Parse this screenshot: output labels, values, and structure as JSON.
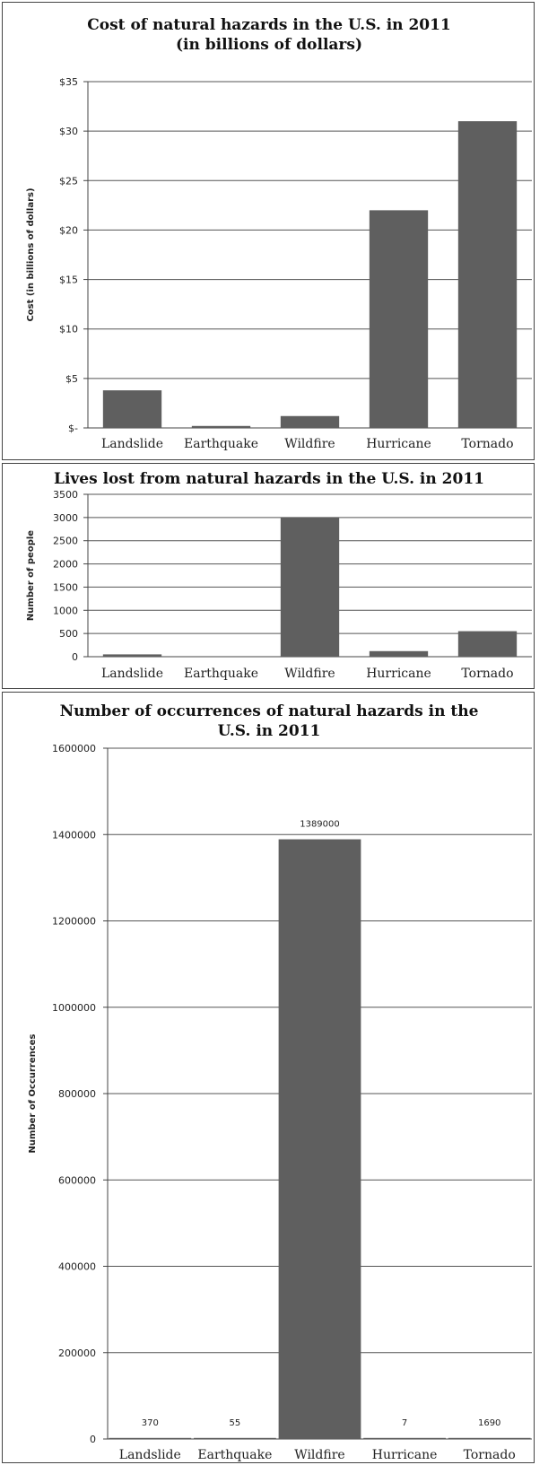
{
  "chart_data": [
    {
      "type": "bar",
      "title_lines": [
        "Cost of natural  hazards in the U.S. in 2011",
        "(in billions of dollars)"
      ],
      "ylabel": "Cost (in billions of dollars)",
      "categories": [
        "Landslide",
        "Earthquake",
        "Wildfire",
        "Hurricane",
        "Tornado"
      ],
      "values": [
        3.8,
        0.2,
        1.2,
        22,
        31
      ],
      "ylim": [
        0,
        35
      ],
      "yticks": [
        0,
        5,
        10,
        15,
        20,
        25,
        30,
        35
      ],
      "ytick_labels": [
        "$-",
        "$5",
        "$10",
        "$15",
        "$20",
        "$25",
        "$30",
        "$35"
      ],
      "grid": true,
      "data_labels": []
    },
    {
      "type": "bar",
      "title_lines": [
        "Lives lost from natural  hazards in the U.S. in 2011"
      ],
      "ylabel": "Number of people",
      "categories": [
        "Landslide",
        "Earthquake",
        "Wildfire",
        "Hurricane",
        "Tornado"
      ],
      "values": [
        50,
        0,
        3000,
        120,
        550
      ],
      "ylim": [
        0,
        3500
      ],
      "yticks": [
        0,
        500,
        1000,
        1500,
        2000,
        2500,
        3000,
        3500
      ],
      "ytick_labels": [
        "0",
        "500",
        "1000",
        "1500",
        "2000",
        "2500",
        "3000",
        "3500"
      ],
      "grid": true,
      "data_labels": []
    },
    {
      "type": "bar",
      "title_lines": [
        "Number of occurrences of natural  hazards in the",
        "U.S. in 2011"
      ],
      "ylabel": "Number of Occurrences",
      "categories": [
        "Landslide",
        "Earthquake",
        "Wildfire",
        "Hurricane",
        "Tornado"
      ],
      "values": [
        370,
        55,
        1389000,
        7,
        1690
      ],
      "ylim": [
        0,
        1600000
      ],
      "yticks": [
        0,
        200000,
        400000,
        600000,
        800000,
        1000000,
        1200000,
        1400000,
        1600000
      ],
      "ytick_labels": [
        "0",
        "200000",
        "400000",
        "600000",
        "800000",
        "1000000",
        "1200000",
        "1400000",
        "1600000"
      ],
      "grid": true,
      "data_labels": [
        "370",
        "55",
        "1389000",
        "7",
        "1690"
      ]
    }
  ],
  "colors": {
    "bar": "#5f5f5f",
    "grid": "#555555"
  }
}
